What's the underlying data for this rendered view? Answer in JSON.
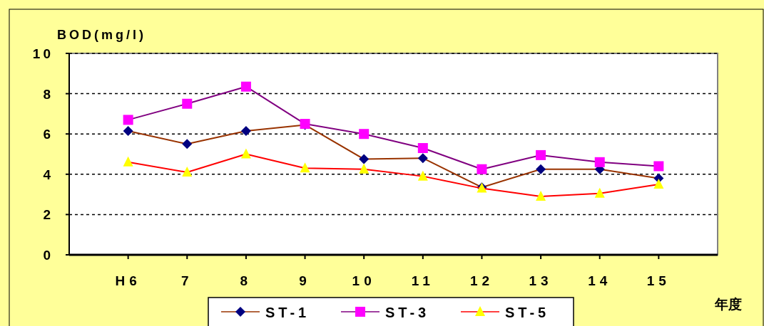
{
  "chart_data": {
    "type": "line",
    "ylabel": "BOD(mg/l)",
    "xlabel": "年度",
    "categories": [
      "H6",
      "7",
      "8",
      "9",
      "10",
      "11",
      "12",
      "13",
      "14",
      "15"
    ],
    "series": [
      {
        "name": "ST-1",
        "color": "#993300",
        "marker": "diamond",
        "colors": [
          "#000080",
          "#000080",
          "#000080",
          "#000080",
          "#000080",
          "#000080",
          "#000080",
          "#000080",
          "#000080",
          "#000080"
        ],
        "values": [
          6.15,
          5.5,
          6.15,
          6.45,
          4.75,
          4.8,
          3.35,
          4.25,
          4.25,
          3.8
        ]
      },
      {
        "name": "ST-3",
        "color": "#800080",
        "marker": "square",
        "colors": [
          "#ff00ff",
          "#ff00ff",
          "#ff00ff",
          "#ff00ff",
          "#ff00ff",
          "#ff00ff",
          "#ff00ff",
          "#ff00ff",
          "#ff00ff",
          "#ff00ff"
        ],
        "values": [
          6.7,
          7.5,
          8.35,
          6.5,
          6.0,
          5.3,
          4.25,
          4.95,
          4.6,
          4.4
        ]
      },
      {
        "name": "ST-5",
        "color": "#ff0000",
        "marker": "triangle",
        "colors": [
          "#ffff00",
          "#ffff00",
          "#ffff00",
          "#ffff00",
          "#ffff00",
          "#ffff00",
          "#ffff00",
          "#ffff00",
          "#ffff00",
          "#ffff00"
        ],
        "values": [
          4.6,
          4.1,
          5.0,
          4.3,
          4.25,
          3.9,
          3.3,
          2.9,
          3.05,
          3.5
        ]
      }
    ],
    "ylim": [
      0,
      10
    ],
    "yticks": [
      0,
      2,
      4,
      6,
      8,
      10
    ],
    "grid": "y",
    "legend": "bottom"
  }
}
